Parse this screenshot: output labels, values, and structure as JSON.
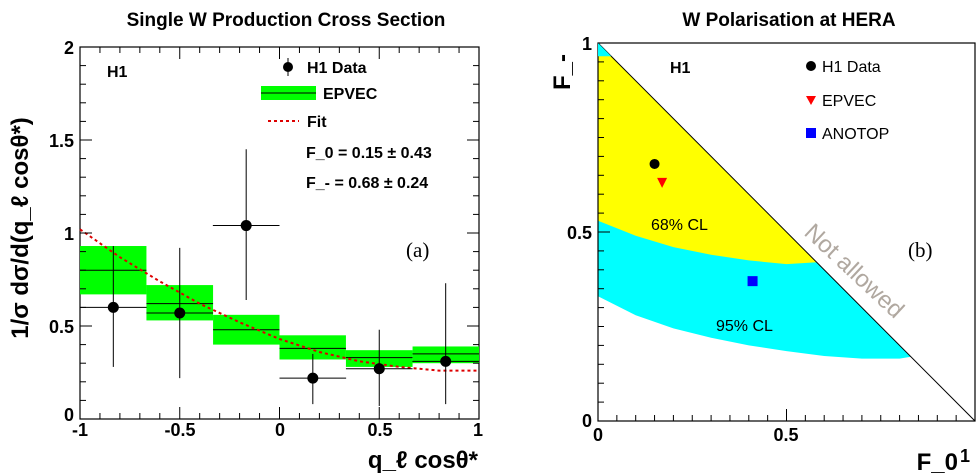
{
  "chart_data": [
    {
      "type": "scatter",
      "title": "Single W Production Cross Section",
      "experiment_label": "H1",
      "panel_label": "(a)",
      "xlabel": "q_ℓ cosθ*",
      "ylabel": "1/σ dσ/d(q_ℓ cosθ*)",
      "xlim": [
        -1,
        1
      ],
      "ylim": [
        0,
        2
      ],
      "xticks": [
        "-1",
        "-0.5",
        "0",
        "0.5",
        "1"
      ],
      "yticks": [
        "0",
        "0.5",
        "1",
        "1.5",
        "2"
      ],
      "legend": {
        "data_label": "H1 Data",
        "mc_label": "EPVEC",
        "fit_label": "Fit",
        "f0_text": "F_0 = 0.15 ± 0.43",
        "fm_text": "F_- = 0.68 ± 0.24"
      },
      "data": [
        {
          "x": -0.833,
          "y": 0.6,
          "xerr": 0.167,
          "ylo": 0.28,
          "yhi": 0.93
        },
        {
          "x": -0.5,
          "y": 0.57,
          "xerr": 0.167,
          "ylo": 0.22,
          "yhi": 0.92
        },
        {
          "x": -0.167,
          "y": 1.04,
          "xerr": 0.167,
          "ylo": 0.64,
          "yhi": 1.45
        },
        {
          "x": 0.167,
          "y": 0.22,
          "xerr": 0.167,
          "ylo": 0.08,
          "yhi": 0.35
        },
        {
          "x": 0.5,
          "y": 0.27,
          "xerr": 0.167,
          "ylo": 0.07,
          "yhi": 0.48
        },
        {
          "x": 0.833,
          "y": 0.31,
          "xerr": 0.167,
          "ylo": 0.08,
          "yhi": 0.73
        }
      ],
      "epvec": [
        {
          "x0": -1,
          "x1": -0.667,
          "y": 0.8,
          "lo": 0.67,
          "hi": 0.93
        },
        {
          "x0": -0.667,
          "x1": -0.333,
          "y": 0.62,
          "lo": 0.53,
          "hi": 0.72
        },
        {
          "x0": -0.333,
          "x1": 0,
          "y": 0.48,
          "lo": 0.4,
          "hi": 0.56
        },
        {
          "x0": 0,
          "x1": 0.333,
          "y": 0.38,
          "lo": 0.32,
          "hi": 0.45
        },
        {
          "x0": 0.333,
          "x1": 0.667,
          "y": 0.33,
          "lo": 0.28,
          "hi": 0.37
        },
        {
          "x0": 0.667,
          "x1": 1,
          "y": 0.35,
          "lo": 0.3,
          "hi": 0.39
        }
      ],
      "fit": {
        "x": [
          -1,
          -0.8,
          -0.6,
          -0.4,
          -0.2,
          0,
          0.2,
          0.4,
          0.6,
          0.8,
          1
        ],
        "y": [
          1.02,
          0.87,
          0.74,
          0.62,
          0.52,
          0.43,
          0.36,
          0.31,
          0.28,
          0.26,
          0.26
        ]
      }
    },
    {
      "type": "scatter",
      "title": "W Polarisation at HERA",
      "experiment_label": "H1",
      "panel_label": "(b)",
      "xlabel": "F_0",
      "ylabel": "F_-",
      "xlim": [
        0,
        1
      ],
      "ylim": [
        0,
        1
      ],
      "xticks": [
        "0",
        "0.5",
        "1"
      ],
      "yticks": [
        "0",
        "0.5",
        "1"
      ],
      "legend": {
        "data_label": "H1 Data",
        "epvec_label": "EPVEC",
        "anotop_label": "ANOTOP"
      },
      "points": {
        "h1": {
          "x": 0.15,
          "y": 0.68
        },
        "epvec": {
          "x": 0.17,
          "y": 0.63
        },
        "anotop": {
          "x": 0.41,
          "y": 0.37
        }
      },
      "regions": {
        "cl68": "68% CL",
        "cl95": "95% CL",
        "forbidden": "Not allowed"
      },
      "colors": {
        "cl68": "#ffff00",
        "cl95": "#00ffff",
        "epvec": "#ff0000",
        "anotop": "#0000ff",
        "band": "#00ff00",
        "fit": "#dd0000"
      }
    }
  ]
}
